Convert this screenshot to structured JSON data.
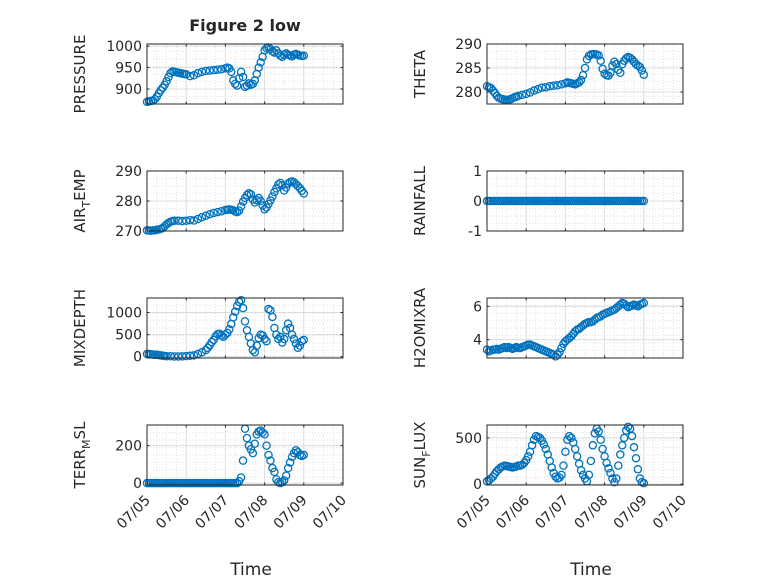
{
  "figure": {
    "title": "Figure 2 low",
    "marker_color": "#0072BD",
    "xlabel": "Time",
    "xticklabels": [
      "07/05",
      "07/06",
      "07/07",
      "07/08",
      "07/09",
      "07/10"
    ]
  },
  "chart_data": [
    {
      "type": "scatter",
      "name": "pressure",
      "title": "Figure 2 low",
      "ylabel": "PRESSURE",
      "xlabel": "",
      "xlim": [
        0,
        5
      ],
      "ylim": [
        865,
        1005
      ],
      "yticks": [
        900,
        950,
        1000
      ],
      "x": [
        0.0,
        0.05,
        0.1,
        0.15,
        0.2,
        0.25,
        0.3,
        0.35,
        0.4,
        0.45,
        0.5,
        0.55,
        0.6,
        0.65,
        0.7,
        0.75,
        0.8,
        0.85,
        0.9,
        0.95,
        1.0,
        1.1,
        1.2,
        1.3,
        1.4,
        1.5,
        1.6,
        1.7,
        1.8,
        1.9,
        2.0,
        2.05,
        2.1,
        2.15,
        2.2,
        2.25,
        2.3,
        2.35,
        2.4,
        2.45,
        2.5,
        2.55,
        2.6,
        2.65,
        2.7,
        2.75,
        2.8,
        2.85,
        2.9,
        2.95,
        3.0,
        3.05,
        3.1,
        3.15,
        3.2,
        3.25,
        3.3,
        3.35,
        3.4,
        3.45,
        3.5,
        3.55,
        3.6,
        3.65,
        3.7,
        3.75,
        3.8,
        3.85,
        3.9,
        3.95,
        4.0
      ],
      "y": [
        870,
        871,
        872,
        873,
        876,
        882,
        890,
        897,
        903,
        910,
        918,
        928,
        937,
        941,
        940,
        939,
        938,
        937,
        936,
        935,
        934,
        930,
        932,
        937,
        940,
        942,
        943,
        944,
        945,
        946,
        948,
        950,
        948,
        940,
        920,
        912,
        908,
        925,
        940,
        928,
        905,
        908,
        913,
        910,
        912,
        920,
        935,
        950,
        962,
        975,
        990,
        995,
        997,
        993,
        988,
        985,
        990,
        983,
        978,
        975,
        980,
        983,
        980,
        978,
        976,
        980,
        982,
        980,
        978,
        977,
        978
      ]
    },
    {
      "type": "scatter",
      "name": "theta",
      "title": "",
      "ylabel": "THETA",
      "xlabel": "",
      "xlim": [
        0,
        5
      ],
      "ylim": [
        277.5,
        290
      ],
      "yticks": [
        280,
        285,
        290
      ],
      "x": [
        0.0,
        0.05,
        0.1,
        0.15,
        0.2,
        0.25,
        0.3,
        0.35,
        0.4,
        0.45,
        0.5,
        0.55,
        0.6,
        0.65,
        0.7,
        0.75,
        0.8,
        0.9,
        1.0,
        1.1,
        1.2,
        1.3,
        1.4,
        1.5,
        1.6,
        1.7,
        1.8,
        1.9,
        2.0,
        2.05,
        2.1,
        2.15,
        2.2,
        2.25,
        2.3,
        2.35,
        2.4,
        2.45,
        2.5,
        2.55,
        2.6,
        2.65,
        2.7,
        2.75,
        2.8,
        2.85,
        2.9,
        2.95,
        3.0,
        3.05,
        3.1,
        3.15,
        3.2,
        3.25,
        3.3,
        3.35,
        3.4,
        3.45,
        3.5,
        3.55,
        3.6,
        3.65,
        3.7,
        3.75,
        3.8,
        3.85,
        3.9,
        3.95,
        4.0
      ],
      "y": [
        281.2,
        281.0,
        280.8,
        280.3,
        279.8,
        279.2,
        278.8,
        278.6,
        278.5,
        278.4,
        278.3,
        278.4,
        278.5,
        278.7,
        278.9,
        279.0,
        279.2,
        279.4,
        279.6,
        279.9,
        280.3,
        280.6,
        280.9,
        281.0,
        281.2,
        281.3,
        281.4,
        281.6,
        281.8,
        282.0,
        281.9,
        281.8,
        281.7,
        281.6,
        281.8,
        282.0,
        282.5,
        283.5,
        285.0,
        286.8,
        287.5,
        287.8,
        287.9,
        287.9,
        287.8,
        287.6,
        286.5,
        284.8,
        283.8,
        283.5,
        283.4,
        284.0,
        285.5,
        286.3,
        285.8,
        284.6,
        284.0,
        285.8,
        286.5,
        287.0,
        287.3,
        287.1,
        286.8,
        286.3,
        285.8,
        285.5,
        285.2,
        284.5,
        283.6
      ]
    },
    {
      "type": "scatter",
      "name": "air-temp",
      "title": "",
      "ylabel": "AIR_TEMP",
      "xlabel": "",
      "xlim": [
        0,
        5
      ],
      "ylim": [
        270,
        290
      ],
      "yticks": [
        270,
        280,
        290
      ],
      "x": [
        0.0,
        0.05,
        0.1,
        0.15,
        0.2,
        0.25,
        0.3,
        0.35,
        0.4,
        0.45,
        0.5,
        0.55,
        0.6,
        0.65,
        0.7,
        0.8,
        0.9,
        1.0,
        1.1,
        1.2,
        1.3,
        1.4,
        1.5,
        1.6,
        1.7,
        1.8,
        1.9,
        2.0,
        2.05,
        2.1,
        2.15,
        2.2,
        2.25,
        2.3,
        2.35,
        2.4,
        2.45,
        2.5,
        2.55,
        2.6,
        2.65,
        2.7,
        2.75,
        2.8,
        2.85,
        2.9,
        2.95,
        3.0,
        3.05,
        3.1,
        3.15,
        3.2,
        3.25,
        3.3,
        3.35,
        3.4,
        3.45,
        3.5,
        3.55,
        3.6,
        3.65,
        3.7,
        3.75,
        3.8,
        3.85,
        3.9,
        3.95,
        4.0
      ],
      "y": [
        270.2,
        270.2,
        270.1,
        270.2,
        270.2,
        270.4,
        270.5,
        270.7,
        271.0,
        271.6,
        272.2,
        272.7,
        273.1,
        273.3,
        273.4,
        273.4,
        273.3,
        273.4,
        273.6,
        273.5,
        274.0,
        274.6,
        275.1,
        275.6,
        276.0,
        276.3,
        276.6,
        277.0,
        277.1,
        277.2,
        277.1,
        276.9,
        276.5,
        276.3,
        276.8,
        278.2,
        279.8,
        281.0,
        282.0,
        282.6,
        282.2,
        280.5,
        279.5,
        280.3,
        281.0,
        280.0,
        278.5,
        277.2,
        277.8,
        279.0,
        280.2,
        281.5,
        283.0,
        284.2,
        285.5,
        286.0,
        285.2,
        283.5,
        284.5,
        285.8,
        286.3,
        286.5,
        286.2,
        285.6,
        285.0,
        284.3,
        283.4,
        282.5
      ]
    },
    {
      "type": "scatter",
      "name": "rainfall",
      "title": "",
      "ylabel": "RAINFALL",
      "xlabel": "",
      "xlim": [
        0,
        5
      ],
      "ylim": [
        -1,
        1
      ],
      "yticks": [
        -1,
        0,
        1
      ],
      "x": [
        0.0,
        0.05,
        0.1,
        0.15,
        0.2,
        0.25,
        0.3,
        0.35,
        0.4,
        0.45,
        0.5,
        0.55,
        0.6,
        0.65,
        0.7,
        0.75,
        0.8,
        0.85,
        0.9,
        0.95,
        1.0,
        1.05,
        1.1,
        1.15,
        1.2,
        1.25,
        1.3,
        1.35,
        1.4,
        1.45,
        1.5,
        1.55,
        1.6,
        1.65,
        1.7,
        1.75,
        1.8,
        1.85,
        1.9,
        1.95,
        2.0,
        2.05,
        2.1,
        2.15,
        2.2,
        2.25,
        2.3,
        2.35,
        2.4,
        2.45,
        2.5,
        2.55,
        2.6,
        2.65,
        2.7,
        2.75,
        2.8,
        2.85,
        2.9,
        2.95,
        3.0,
        3.05,
        3.1,
        3.15,
        3.2,
        3.25,
        3.3,
        3.35,
        3.4,
        3.45,
        3.5,
        3.55,
        3.6,
        3.65,
        3.7,
        3.75,
        3.8,
        3.85,
        3.9,
        3.95,
        4.0
      ],
      "y": [
        0,
        0,
        0,
        0,
        0,
        0,
        0,
        0,
        0,
        0,
        0,
        0,
        0,
        0,
        0,
        0,
        0,
        0,
        0,
        0,
        0,
        0,
        0,
        0,
        0,
        0,
        0,
        0,
        0,
        0,
        0,
        0,
        0,
        0,
        0,
        0,
        0,
        0,
        0,
        0,
        0,
        0,
        0,
        0,
        0,
        0,
        0,
        0,
        0,
        0,
        0,
        0,
        0,
        0,
        0,
        0,
        0,
        0,
        0,
        0,
        0,
        0,
        0,
        0,
        0,
        0,
        0,
        0,
        0,
        0,
        0,
        0,
        0,
        0,
        0,
        0,
        0,
        0,
        0,
        0,
        0
      ]
    },
    {
      "type": "scatter",
      "name": "mixdepth",
      "title": "",
      "ylabel": "MIXDEPTH",
      "xlabel": "",
      "xlim": [
        0,
        5
      ],
      "ylim": [
        -30,
        1330
      ],
      "yticks": [
        0,
        500,
        1000
      ],
      "x": [
        0.0,
        0.05,
        0.1,
        0.15,
        0.2,
        0.25,
        0.3,
        0.35,
        0.4,
        0.45,
        0.5,
        0.6,
        0.7,
        0.8,
        0.9,
        1.0,
        1.1,
        1.2,
        1.3,
        1.4,
        1.5,
        1.55,
        1.6,
        1.65,
        1.7,
        1.75,
        1.8,
        1.85,
        1.9,
        1.95,
        2.0,
        2.05,
        2.1,
        2.15,
        2.2,
        2.25,
        2.3,
        2.35,
        2.4,
        2.45,
        2.5,
        2.55,
        2.6,
        2.65,
        2.7,
        2.75,
        2.8,
        2.85,
        2.9,
        2.95,
        3.0,
        3.05,
        3.1,
        3.15,
        3.2,
        3.25,
        3.3,
        3.35,
        3.4,
        3.45,
        3.5,
        3.55,
        3.6,
        3.65,
        3.7,
        3.75,
        3.8,
        3.85,
        3.9,
        3.95,
        4.0
      ],
      "y": [
        60,
        60,
        55,
        50,
        40,
        45,
        35,
        30,
        20,
        15,
        10,
        10,
        5,
        5,
        8,
        12,
        20,
        30,
        60,
        100,
        150,
        200,
        260,
        330,
        380,
        460,
        510,
        520,
        480,
        450,
        500,
        540,
        620,
        740,
        890,
        1020,
        1150,
        1240,
        1280,
        1100,
        800,
        600,
        450,
        300,
        150,
        100,
        250,
        420,
        500,
        480,
        400,
        350,
        1080,
        1050,
        900,
        650,
        500,
        400,
        450,
        320,
        400,
        600,
        750,
        650,
        500,
        400,
        300,
        200,
        250,
        350,
        380
      ]
    },
    {
      "type": "scatter",
      "name": "h2omixra",
      "title": "",
      "ylabel": "H2OMIXRA",
      "xlabel": "",
      "xlim": [
        0,
        5
      ],
      "ylim": [
        2.9,
        6.5
      ],
      "yticks": [
        4,
        6
      ],
      "x": [
        0.0,
        0.05,
        0.1,
        0.15,
        0.2,
        0.25,
        0.3,
        0.35,
        0.4,
        0.45,
        0.5,
        0.55,
        0.6,
        0.65,
        0.7,
        0.75,
        0.8,
        0.85,
        0.9,
        0.95,
        1.0,
        1.05,
        1.1,
        1.15,
        1.2,
        1.25,
        1.3,
        1.35,
        1.4,
        1.45,
        1.5,
        1.55,
        1.6,
        1.65,
        1.7,
        1.75,
        1.8,
        1.85,
        1.9,
        1.95,
        2.0,
        2.05,
        2.1,
        2.15,
        2.2,
        2.25,
        2.3,
        2.35,
        2.4,
        2.45,
        2.5,
        2.55,
        2.6,
        2.65,
        2.7,
        2.75,
        2.8,
        2.85,
        2.9,
        2.95,
        3.0,
        3.05,
        3.1,
        3.15,
        3.2,
        3.25,
        3.3,
        3.35,
        3.4,
        3.45,
        3.5,
        3.55,
        3.6,
        3.65,
        3.7,
        3.75,
        3.8,
        3.85,
        3.9,
        3.95,
        4.0
      ],
      "y": [
        3.4,
        3.3,
        3.35,
        3.4,
        3.4,
        3.45,
        3.4,
        3.45,
        3.5,
        3.55,
        3.5,
        3.55,
        3.5,
        3.45,
        3.5,
        3.55,
        3.5,
        3.5,
        3.55,
        3.6,
        3.65,
        3.7,
        3.7,
        3.65,
        3.6,
        3.55,
        3.5,
        3.45,
        3.4,
        3.35,
        3.3,
        3.25,
        3.2,
        3.15,
        3.1,
        3.0,
        3.1,
        3.25,
        3.5,
        3.75,
        3.9,
        4.0,
        4.1,
        4.2,
        4.35,
        4.5,
        4.6,
        4.65,
        4.75,
        4.85,
        4.95,
        5.0,
        5.05,
        5.05,
        5.1,
        5.2,
        5.3,
        5.35,
        5.4,
        5.5,
        5.55,
        5.6,
        5.65,
        5.7,
        5.75,
        5.8,
        5.9,
        6.0,
        6.1,
        6.2,
        6.15,
        6.05,
        5.95,
        6.0,
        6.05,
        6.1,
        6.05,
        6.0,
        6.1,
        6.15,
        6.2
      ]
    },
    {
      "type": "scatter",
      "name": "terr-msl",
      "title": "",
      "ylabel": "TERR_MSL",
      "xlabel": "Time",
      "xlim": [
        0,
        5
      ],
      "ylim": [
        -10,
        310
      ],
      "yticks": [
        0,
        200
      ],
      "xticklabels": [
        "07/05",
        "07/06",
        "07/07",
        "07/08",
        "07/09",
        "07/10"
      ],
      "x": [
        0.0,
        0.05,
        0.1,
        0.15,
        0.2,
        0.25,
        0.3,
        0.35,
        0.4,
        0.45,
        0.5,
        0.55,
        0.6,
        0.65,
        0.7,
        0.75,
        0.8,
        0.85,
        0.9,
        0.95,
        1.0,
        1.05,
        1.1,
        1.15,
        1.2,
        1.25,
        1.3,
        1.35,
        1.4,
        1.45,
        1.5,
        1.55,
        1.6,
        1.65,
        1.7,
        1.75,
        1.8,
        1.85,
        1.9,
        1.95,
        2.0,
        2.05,
        2.1,
        2.15,
        2.2,
        2.25,
        2.3,
        2.35,
        2.4,
        2.45,
        2.5,
        2.55,
        2.6,
        2.65,
        2.7,
        2.75,
        2.8,
        2.85,
        2.9,
        2.95,
        3.0,
        3.05,
        3.1,
        3.15,
        3.2,
        3.25,
        3.3,
        3.35,
        3.4,
        3.45,
        3.5,
        3.55,
        3.6,
        3.65,
        3.7,
        3.75,
        3.8,
        3.85,
        3.9,
        3.95,
        4.0
      ],
      "y": [
        0,
        0,
        0,
        0,
        0,
        0,
        0,
        0,
        0,
        0,
        0,
        0,
        0,
        0,
        0,
        0,
        0,
        0,
        0,
        0,
        0,
        0,
        0,
        0,
        0,
        0,
        0,
        0,
        0,
        0,
        0,
        0,
        0,
        0,
        0,
        0,
        0,
        0,
        0,
        0,
        0,
        0,
        0,
        0,
        0,
        0,
        0,
        10,
        30,
        120,
        290,
        240,
        200,
        180,
        160,
        210,
        260,
        275,
        280,
        270,
        260,
        200,
        150,
        120,
        80,
        60,
        20,
        5,
        0,
        5,
        15,
        40,
        80,
        110,
        140,
        160,
        175,
        165,
        150,
        145,
        150
      ]
    },
    {
      "type": "scatter",
      "name": "sun-flux",
      "title": "",
      "ylabel": "SUN_FLUX",
      "xlabel": "Time",
      "xlim": [
        0,
        5
      ],
      "ylim": [
        -10,
        640
      ],
      "yticks": [
        0,
        500
      ],
      "xticklabels": [
        "07/05",
        "07/06",
        "07/07",
        "07/08",
        "07/09",
        "07/10"
      ],
      "x": [
        0.0,
        0.05,
        0.1,
        0.15,
        0.2,
        0.25,
        0.3,
        0.35,
        0.4,
        0.45,
        0.5,
        0.55,
        0.6,
        0.65,
        0.7,
        0.75,
        0.8,
        0.85,
        0.9,
        0.95,
        1.0,
        1.05,
        1.1,
        1.15,
        1.2,
        1.25,
        1.3,
        1.35,
        1.4,
        1.45,
        1.5,
        1.55,
        1.6,
        1.65,
        1.7,
        1.75,
        1.8,
        1.85,
        1.9,
        1.95,
        2.0,
        2.05,
        2.1,
        2.15,
        2.2,
        2.25,
        2.3,
        2.35,
        2.4,
        2.45,
        2.5,
        2.55,
        2.6,
        2.65,
        2.7,
        2.75,
        2.8,
        2.85,
        2.9,
        2.95,
        3.0,
        3.05,
        3.1,
        3.15,
        3.2,
        3.25,
        3.3,
        3.35,
        3.4,
        3.45,
        3.5,
        3.55,
        3.6,
        3.65,
        3.7,
        3.75,
        3.8,
        3.85,
        3.9,
        3.95,
        4.0
      ],
      "y": [
        30,
        40,
        60,
        80,
        110,
        140,
        160,
        180,
        190,
        200,
        195,
        190,
        185,
        180,
        185,
        190,
        200,
        200,
        210,
        230,
        260,
        300,
        350,
        420,
        480,
        520,
        510,
        500,
        470,
        430,
        380,
        320,
        250,
        180,
        120,
        80,
        60,
        70,
        100,
        200,
        350,
        480,
        520,
        500,
        450,
        380,
        300,
        220,
        150,
        100,
        60,
        30,
        100,
        250,
        420,
        550,
        600,
        570,
        480,
        380,
        300,
        230,
        170,
        120,
        60,
        20,
        60,
        200,
        320,
        420,
        500,
        580,
        620,
        600,
        520,
        400,
        280,
        160,
        60,
        20,
        10
      ]
    }
  ]
}
